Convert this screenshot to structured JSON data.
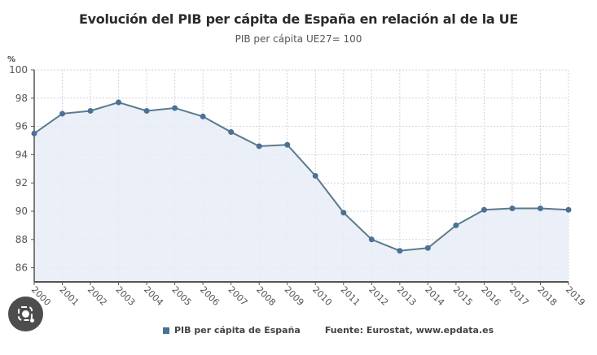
{
  "header": {
    "title": "Evolución del PIB per cápita de España en relación al de la UE",
    "subtitle": "PIB per cápita UE27= 100"
  },
  "legend": {
    "series_label": "PIB per cápita de España",
    "source": "Fuente: Eurostat, www.epdata.es"
  },
  "colors": {
    "line": "#4a7196",
    "area": "#e8ecf6",
    "grid": "#cfd3dd",
    "text": "#444444"
  },
  "chart_data": {
    "type": "area",
    "title": "Evolución del PIB per cápita de España en relación al de la UE",
    "subtitle": "PIB per cápita UE27= 100",
    "xlabel": "",
    "ylabel": "%",
    "x": [
      "2000",
      "2001",
      "2002",
      "2003",
      "2004",
      "2005",
      "2006",
      "2007",
      "2008",
      "2009",
      "2010",
      "2011",
      "2012",
      "2013",
      "2014",
      "2015",
      "2016",
      "2017",
      "2018",
      "2019"
    ],
    "series": [
      {
        "name": "PIB per cápita de España",
        "values": [
          95.5,
          96.9,
          97.1,
          97.7,
          97.1,
          97.3,
          96.7,
          95.6,
          94.6,
          94.7,
          92.5,
          89.9,
          88.0,
          87.2,
          87.4,
          89.0,
          90.1,
          90.2,
          90.2,
          90.1
        ]
      }
    ],
    "ylim": [
      85,
      100
    ],
    "yticks": [
      86,
      88,
      90,
      92,
      94,
      96,
      98,
      100
    ],
    "grid": true,
    "legend_position": "bottom",
    "source": "Fuente: Eurostat, www.epdata.es"
  }
}
